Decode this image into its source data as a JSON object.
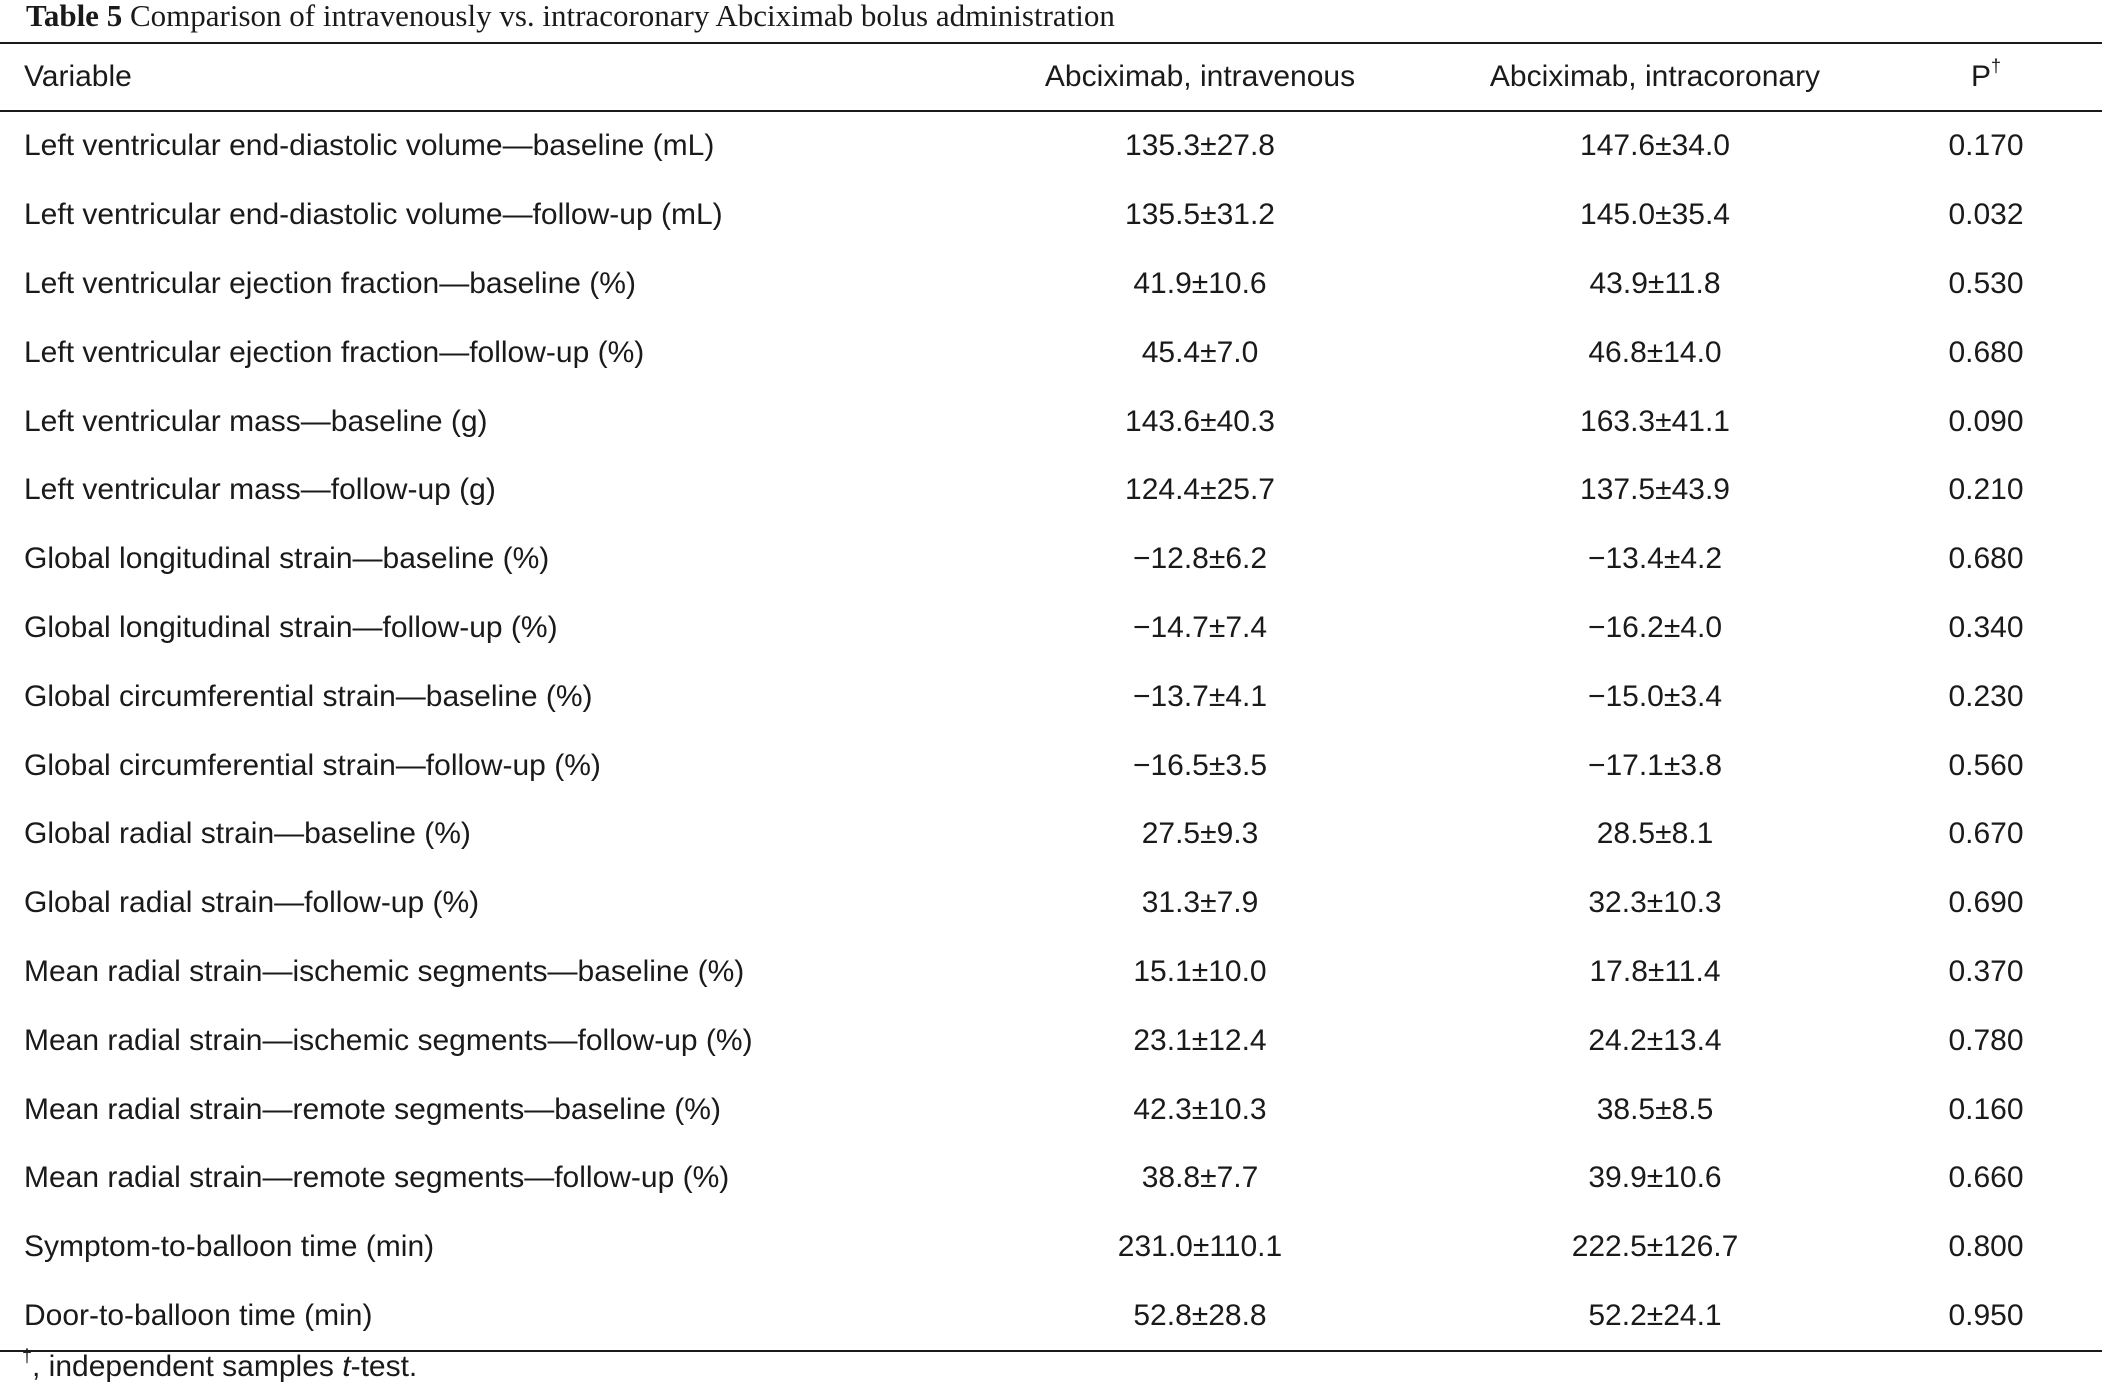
{
  "caption": {
    "label": "Table 5",
    "text": "Comparison of intravenously vs. intracoronary Abciximab bolus administration"
  },
  "table": {
    "headers": {
      "variable": "Variable",
      "intravenous": "Abciximab, intravenous",
      "intracoronary": "Abciximab, intracoronary",
      "p": "P",
      "p_mark": "†"
    },
    "rows": [
      {
        "variable": "Left ventricular end-diastolic volume—baseline (mL)",
        "intravenous": "135.3±27.8",
        "intracoronary": "147.6±34.0",
        "p": "0.170"
      },
      {
        "variable": "Left ventricular end-diastolic volume—follow-up (mL)",
        "intravenous": "135.5±31.2",
        "intracoronary": "145.0±35.4",
        "p": "0.032"
      },
      {
        "variable": "Left ventricular ejection fraction—baseline (%)",
        "intravenous": "41.9±10.6",
        "intracoronary": "43.9±11.8",
        "p": "0.530"
      },
      {
        "variable": "Left ventricular ejection fraction—follow-up (%)",
        "intravenous": "45.4±7.0",
        "intracoronary": "46.8±14.0",
        "p": "0.680"
      },
      {
        "variable": "Left ventricular mass—baseline (g)",
        "intravenous": "143.6±40.3",
        "intracoronary": "163.3±41.1",
        "p": "0.090"
      },
      {
        "variable": "Left ventricular mass—follow-up (g)",
        "intravenous": "124.4±25.7",
        "intracoronary": "137.5±43.9",
        "p": "0.210"
      },
      {
        "variable": "Global longitudinal strain—baseline (%)",
        "intravenous": "−12.8±6.2",
        "intracoronary": "−13.4±4.2",
        "p": "0.680"
      },
      {
        "variable": "Global longitudinal strain—follow-up (%)",
        "intravenous": "−14.7±7.4",
        "intracoronary": "−16.2±4.0",
        "p": "0.340"
      },
      {
        "variable": "Global circumferential strain—baseline (%)",
        "intravenous": "−13.7±4.1",
        "intracoronary": "−15.0±3.4",
        "p": "0.230"
      },
      {
        "variable": "Global circumferential strain—follow-up (%)",
        "intravenous": "−16.5±3.5",
        "intracoronary": "−17.1±3.8",
        "p": "0.560"
      },
      {
        "variable": "Global radial strain—baseline (%)",
        "intravenous": "27.5±9.3",
        "intracoronary": "28.5±8.1",
        "p": "0.670"
      },
      {
        "variable": "Global radial strain—follow-up (%)",
        "intravenous": "31.3±7.9",
        "intracoronary": "32.3±10.3",
        "p": "0.690"
      },
      {
        "variable": "Mean radial strain—ischemic segments—baseline (%)",
        "intravenous": "15.1±10.0",
        "intracoronary": "17.8±11.4",
        "p": "0.370"
      },
      {
        "variable": "Mean radial strain—ischemic segments—follow-up (%)",
        "intravenous": "23.1±12.4",
        "intracoronary": "24.2±13.4",
        "p": "0.780"
      },
      {
        "variable": "Mean radial strain—remote segments—baseline (%)",
        "intravenous": "42.3±10.3",
        "intracoronary": "38.5±8.5",
        "p": "0.160"
      },
      {
        "variable": "Mean radial strain—remote segments—follow-up (%)",
        "intravenous": "38.8±7.7",
        "intracoronary": "39.9±10.6",
        "p": "0.660"
      },
      {
        "variable": "Symptom-to-balloon time (min)",
        "intravenous": "231.0±110.1",
        "intracoronary": "222.5±126.7",
        "p": "0.800"
      },
      {
        "variable": "Door-to-balloon time (min)",
        "intravenous": "52.8±28.8",
        "intracoronary": "52.2±24.1",
        "p": "0.950"
      }
    ]
  },
  "footnote": {
    "mark": "†",
    "prefix": ", independent samples ",
    "italic": "t",
    "suffix": "-test."
  }
}
